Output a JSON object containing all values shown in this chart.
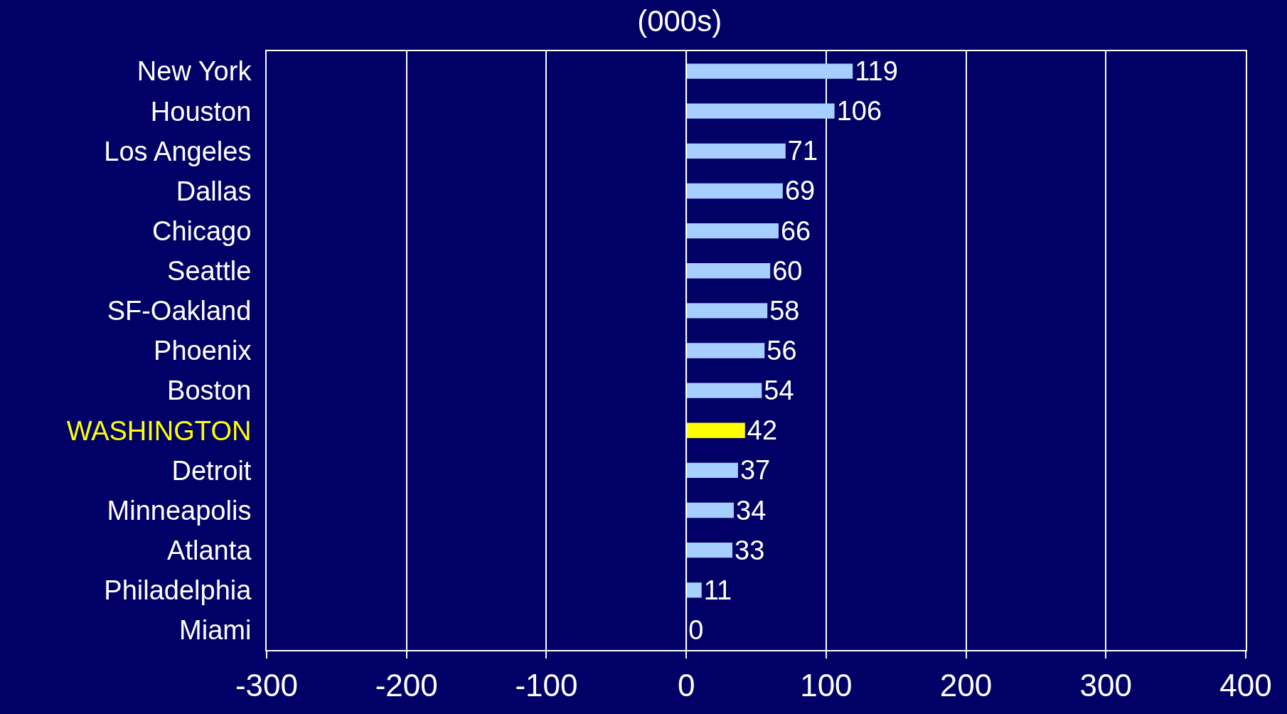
{
  "chart_data": {
    "type": "bar",
    "orientation": "horizontal",
    "title": "(000s)",
    "categories": [
      "New York",
      "Houston",
      "Los Angeles",
      "Dallas",
      "Chicago",
      "Seattle",
      "SF-Oakland",
      "Phoenix",
      "Boston",
      "WASHINGTON",
      "Detroit",
      "Minneapolis",
      "Atlanta",
      "Philadelphia",
      "Miami"
    ],
    "values": [
      119,
      106,
      71,
      69,
      66,
      60,
      58,
      56,
      54,
      42,
      37,
      34,
      33,
      11,
      0
    ],
    "color": "#a6cfff",
    "colors": [
      "#a6cfff",
      "#a6cfff",
      "#a6cfff",
      "#a6cfff",
      "#a6cfff",
      "#a6cfff",
      "#a6cfff",
      "#a6cfff",
      "#a6cfff",
      "#ffff00",
      "#a6cfff",
      "#a6cfff",
      "#a6cfff",
      "#a6cfff",
      "#a6cfff"
    ],
    "xlim": [
      -300,
      400
    ],
    "xticks": [
      -300,
      -200,
      -100,
      0,
      100,
      200,
      300,
      400
    ],
    "grid": "x",
    "data_labels": true
  }
}
